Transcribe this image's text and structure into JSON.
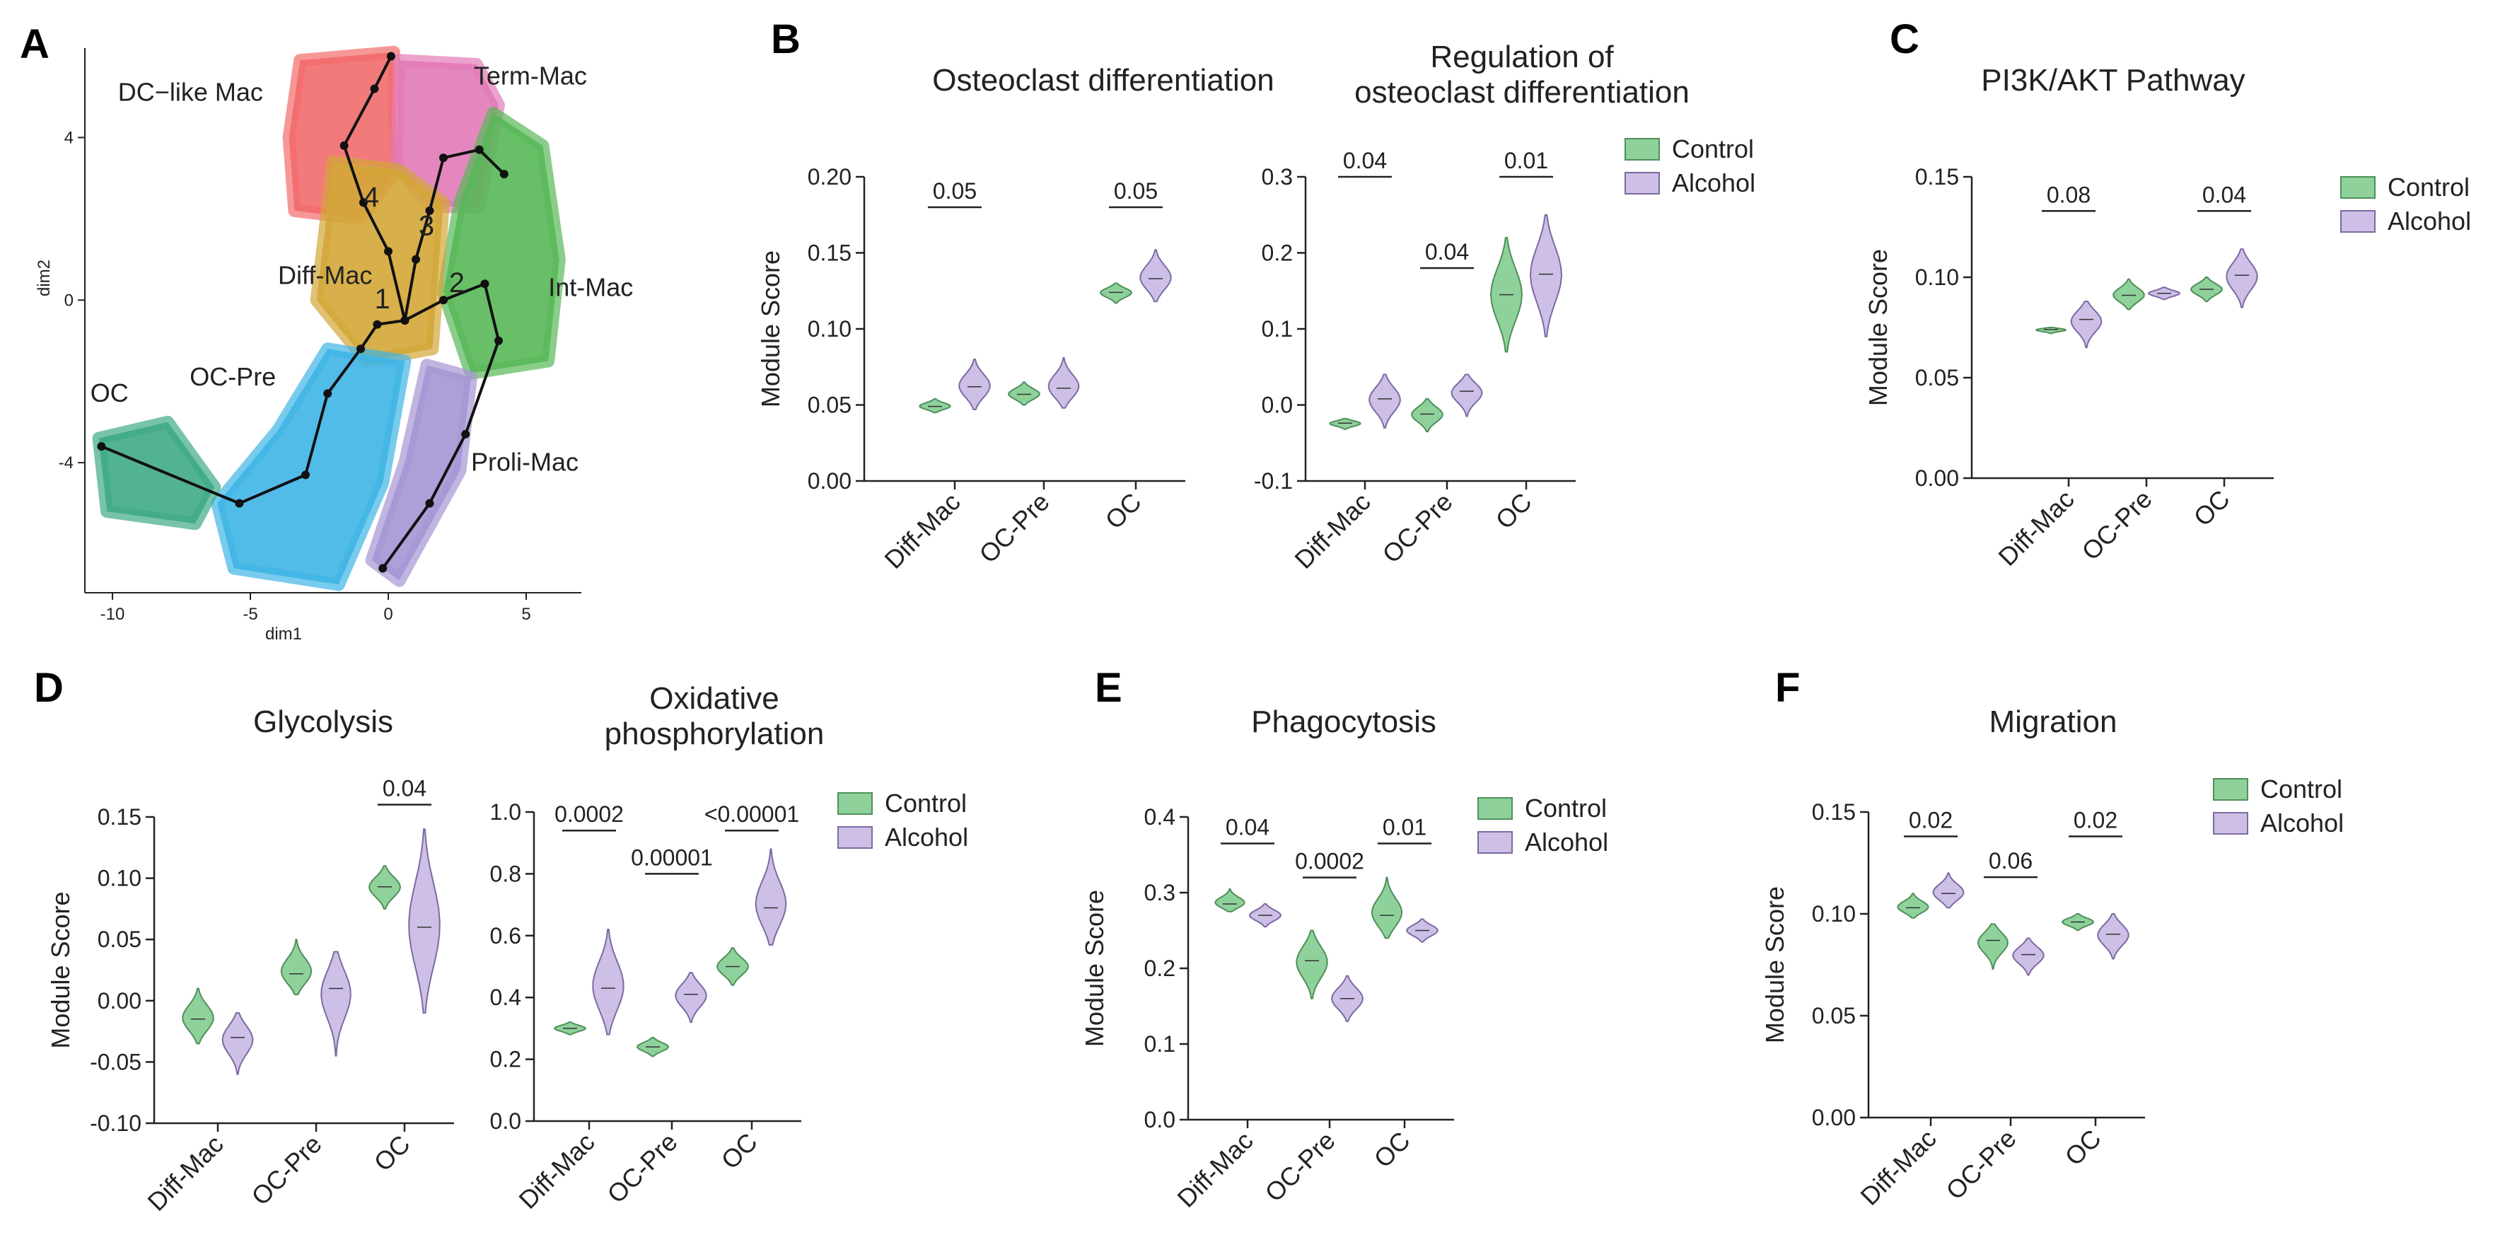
{
  "colors": {
    "control": "#8fd19b",
    "control_stroke": "#4f8f5a",
    "alcohol": "#cdbfe6",
    "alcohol_stroke": "#7b6aa3",
    "axis": "#222222",
    "umap_clusters": {
      "DC-like Mac": "#f26b6b",
      "Term-Mac": "#e27ab8",
      "Diff-Mac": "#d3a737",
      "Int-Mac": "#58b858",
      "OC-Pre": "#3fb5e6",
      "OC": "#3faa88",
      "Proli-Mac": "#a595d4"
    }
  },
  "panels": {
    "A": {
      "letter": "A"
    },
    "B": {
      "letter": "B"
    },
    "C": {
      "letter": "C"
    },
    "D": {
      "letter": "D"
    },
    "E": {
      "letter": "E"
    },
    "F": {
      "letter": "F"
    }
  },
  "chart_data": [
    {
      "id": "umap",
      "panel": "A",
      "type": "scatter",
      "title": "",
      "xlabel": "dim1",
      "ylabel": "dim2",
      "xlim": [
        -11,
        7
      ],
      "ylim": [
        -7.2,
        6.2
      ],
      "xticks": [
        -10,
        -5,
        0,
        5
      ],
      "yticks": [
        -4,
        0,
        4
      ],
      "clusters": [
        {
          "name": "DC−like Mac",
          "color": "#f26b6b"
        },
        {
          "name": "Term-Mac",
          "color": "#e27ab8"
        },
        {
          "name": "Diff-Mac",
          "color": "#d3a737"
        },
        {
          "name": "Int-Mac",
          "color": "#58b858"
        },
        {
          "name": "OC-Pre",
          "color": "#3fb5e6"
        },
        {
          "name": "OC",
          "color": "#3faa88"
        },
        {
          "name": "Proli-Mac",
          "color": "#a595d4"
        }
      ],
      "cluster_labels": [
        {
          "text": "DC−like Mac",
          "x": -9.8,
          "y": 4.9
        },
        {
          "text": "Term-Mac",
          "x": 3.1,
          "y": 5.3
        },
        {
          "text": "Diff-Mac",
          "x": -4.0,
          "y": 0.4
        },
        {
          "text": "Int-Mac",
          "x": 5.8,
          "y": 0.1
        },
        {
          "text": "OC-Pre",
          "x": -7.2,
          "y": -2.1
        },
        {
          "text": "OC",
          "x": -10.8,
          "y": -2.5
        },
        {
          "text": "Proli-Mac",
          "x": 3.0,
          "y": -4.2
        }
      ],
      "trajectory_numbers": [
        {
          "text": "1",
          "x": -0.5,
          "y": -0.2
        },
        {
          "text": "2",
          "x": 2.2,
          "y": 0.2
        },
        {
          "text": "3",
          "x": 1.1,
          "y": 1.6
        },
        {
          "text": "4",
          "x": -0.9,
          "y": 2.3
        }
      ]
    },
    {
      "id": "B1",
      "panel": "B",
      "type": "violin",
      "title": "Osteoclast differentiation",
      "ylabel": "Module Score",
      "ylim": [
        0.0,
        0.2
      ],
      "yticks": [
        "0.00",
        "0.05",
        "0.10",
        "0.15",
        "0.20"
      ],
      "categories": [
        "Diff-Mac",
        "OC-Pre",
        "OC"
      ],
      "series": [
        {
          "name": "Control",
          "median": [
            0.049,
            0.057,
            0.124
          ],
          "min": [
            0.045,
            0.05,
            0.117
          ],
          "max": [
            0.054,
            0.065,
            0.13
          ]
        },
        {
          "name": "Alcohol",
          "median": [
            0.062,
            0.061,
            0.133
          ],
          "min": [
            0.047,
            0.048,
            0.118
          ],
          "max": [
            0.08,
            0.081,
            0.152
          ]
        }
      ],
      "pvalues": [
        {
          "category": "Diff-Mac",
          "text": "0.05",
          "y": 0.18
        },
        {
          "category": "OC",
          "text": "0.05",
          "y": 0.18
        }
      ]
    },
    {
      "id": "B2",
      "panel": "B",
      "type": "violin",
      "title": "Regulation of osteoclast differentiation",
      "title_lines": [
        "Regulation of",
        "osteoclast differentiation"
      ],
      "ylabel": "",
      "ylim": [
        -0.1,
        0.3
      ],
      "yticks": [
        "-0.1",
        "0.0",
        "0.1",
        "0.2",
        "0.3"
      ],
      "categories": [
        "Diff-Mac",
        "OC-Pre",
        "OC"
      ],
      "series": [
        {
          "name": "Control",
          "median": [
            -0.024,
            -0.012,
            0.145
          ],
          "min": [
            -0.032,
            -0.035,
            0.07
          ],
          "max": [
            -0.018,
            0.008,
            0.22
          ]
        },
        {
          "name": "Alcohol",
          "median": [
            0.008,
            0.018,
            0.172
          ],
          "min": [
            -0.03,
            -0.015,
            0.09
          ],
          "max": [
            0.04,
            0.04,
            0.25
          ]
        }
      ],
      "pvalues": [
        {
          "category": "Diff-Mac",
          "text": "0.04",
          "y": 0.3
        },
        {
          "category": "OC-Pre",
          "text": "0.04",
          "y": 0.18
        },
        {
          "category": "OC",
          "text": "0.01",
          "y": 0.3
        }
      ],
      "legend": [
        "Control",
        "Alcohol"
      ]
    },
    {
      "id": "C",
      "panel": "C",
      "type": "violin",
      "title": "PI3K/AKT Pathway",
      "ylabel": "Module Score",
      "ylim": [
        0.0,
        0.15
      ],
      "yticks": [
        "0.00",
        "0.05",
        "0.10",
        "0.15"
      ],
      "categories": [
        "Diff-Mac",
        "OC-Pre",
        "OC"
      ],
      "series": [
        {
          "name": "Control",
          "median": [
            0.074,
            0.091,
            0.094
          ],
          "min": [
            0.072,
            0.084,
            0.088
          ],
          "max": [
            0.075,
            0.099,
            0.1
          ]
        },
        {
          "name": "Alcohol",
          "median": [
            0.079,
            0.092,
            0.101
          ],
          "min": [
            0.065,
            0.089,
            0.085
          ],
          "max": [
            0.088,
            0.095,
            0.114
          ]
        }
      ],
      "pvalues": [
        {
          "category": "Diff-Mac",
          "text": "0.08",
          "y": 0.133
        },
        {
          "category": "OC",
          "text": "0.04",
          "y": 0.133
        }
      ],
      "legend": [
        "Control",
        "Alcohol"
      ]
    },
    {
      "id": "D1",
      "panel": "D",
      "type": "violin",
      "title": "Glycolysis",
      "ylabel": "Module Score",
      "ylim": [
        -0.1,
        0.15
      ],
      "yticks": [
        "-0.10",
        "-0.05",
        "0.00",
        "0.05",
        "0.10",
        "0.15"
      ],
      "categories": [
        "Diff-Mac",
        "OC-Pre",
        "OC"
      ],
      "series": [
        {
          "name": "Control",
          "median": [
            -0.015,
            0.022,
            0.093
          ],
          "min": [
            -0.035,
            0.005,
            0.075
          ],
          "max": [
            0.01,
            0.05,
            0.11
          ]
        },
        {
          "name": "Alcohol",
          "median": [
            -0.03,
            0.01,
            0.06
          ],
          "min": [
            -0.06,
            -0.045,
            -0.01
          ],
          "max": [
            -0.01,
            0.04,
            0.14
          ]
        }
      ],
      "pvalues": [
        {
          "category": "OC",
          "text": "0.04",
          "y": 0.16
        }
      ]
    },
    {
      "id": "D2",
      "panel": "D",
      "type": "violin",
      "title": "Oxidative phosphorylation",
      "title_lines": [
        "Oxidative",
        "phosphorylation"
      ],
      "ylabel": "",
      "ylim": [
        0.0,
        1.0
      ],
      "yticks": [
        "0.0",
        "0.2",
        "0.4",
        "0.6",
        "0.8",
        "1.0"
      ],
      "categories": [
        "Diff-Mac",
        "OC-Pre",
        "OC"
      ],
      "series": [
        {
          "name": "Control",
          "median": [
            0.3,
            0.24,
            0.5
          ],
          "min": [
            0.28,
            0.21,
            0.44
          ],
          "max": [
            0.32,
            0.27,
            0.56
          ]
        },
        {
          "name": "Alcohol",
          "median": [
            0.43,
            0.41,
            0.69
          ],
          "min": [
            0.28,
            0.32,
            0.57
          ],
          "max": [
            0.62,
            0.48,
            0.88
          ]
        }
      ],
      "pvalues": [
        {
          "category": "Diff-Mac",
          "text": "0.0002",
          "y": 0.94
        },
        {
          "category": "OC-Pre",
          "text": "0.00001",
          "y": 0.8
        },
        {
          "category": "OC",
          "text": "<0.00001",
          "y": 0.94
        }
      ],
      "legend": [
        "Control",
        "Alcohol"
      ]
    },
    {
      "id": "E",
      "panel": "E",
      "type": "violin",
      "title": "Phagocytosis",
      "ylabel": "Module Score",
      "ylim": [
        0.0,
        0.4
      ],
      "yticks": [
        "0.0",
        "0.1",
        "0.2",
        "0.3",
        "0.4"
      ],
      "categories": [
        "Diff-Mac",
        "OC-Pre",
        "OC"
      ],
      "series": [
        {
          "name": "Control",
          "median": [
            0.285,
            0.21,
            0.27
          ],
          "min": [
            0.275,
            0.16,
            0.24
          ],
          "max": [
            0.305,
            0.25,
            0.32
          ]
        },
        {
          "name": "Alcohol",
          "median": [
            0.27,
            0.16,
            0.25
          ],
          "min": [
            0.255,
            0.13,
            0.235
          ],
          "max": [
            0.285,
            0.19,
            0.265
          ]
        }
      ],
      "pvalues": [
        {
          "category": "Diff-Mac",
          "text": "0.04",
          "y": 0.365
        },
        {
          "category": "OC-Pre",
          "text": "0.0002",
          "y": 0.32
        },
        {
          "category": "OC",
          "text": "0.01",
          "y": 0.365
        }
      ],
      "legend": [
        "Control",
        "Alcohol"
      ]
    },
    {
      "id": "F",
      "panel": "F",
      "type": "violin",
      "title": "Migration",
      "ylabel": "Module Score",
      "ylim": [
        0.0,
        0.15
      ],
      "yticks": [
        "0.00",
        "0.05",
        "0.10",
        "0.15"
      ],
      "categories": [
        "Diff-Mac",
        "OC-Pre",
        "OC"
      ],
      "series": [
        {
          "name": "Control",
          "median": [
            0.103,
            0.087,
            0.096
          ],
          "min": [
            0.098,
            0.073,
            0.092
          ],
          "max": [
            0.11,
            0.095,
            0.1
          ]
        },
        {
          "name": "Alcohol",
          "median": [
            0.11,
            0.08,
            0.09
          ],
          "min": [
            0.103,
            0.07,
            0.078
          ],
          "max": [
            0.12,
            0.088,
            0.1
          ]
        }
      ],
      "pvalues": [
        {
          "category": "Diff-Mac",
          "text": "0.02",
          "y": 0.138
        },
        {
          "category": "OC-Pre",
          "text": "0.06",
          "y": 0.118
        },
        {
          "category": "OC",
          "text": "0.02",
          "y": 0.138
        }
      ],
      "legend": [
        "Control",
        "Alcohol"
      ]
    }
  ]
}
